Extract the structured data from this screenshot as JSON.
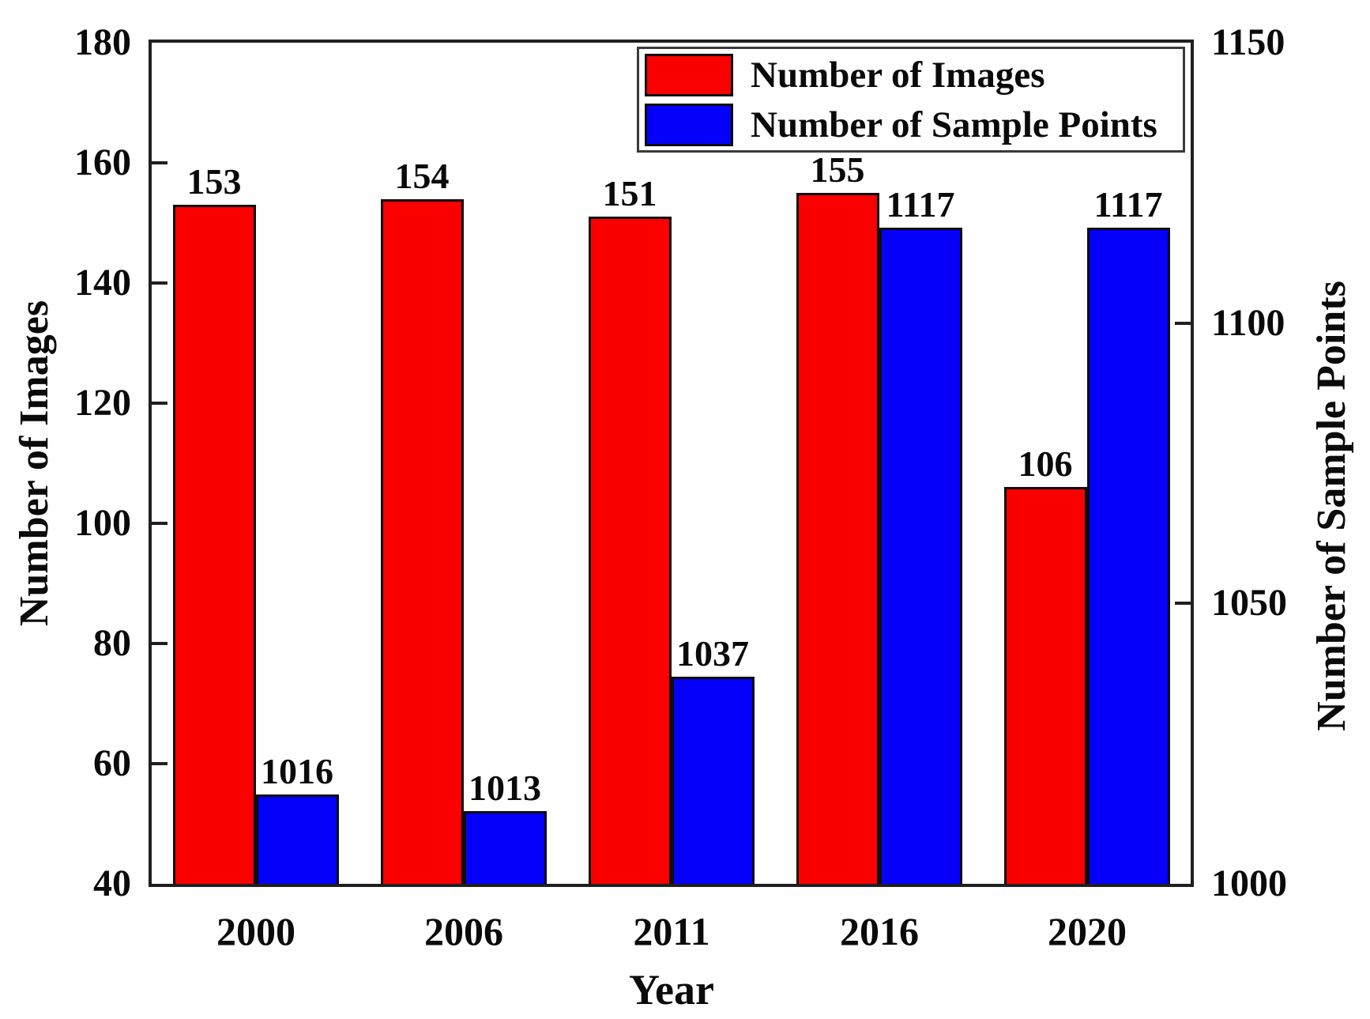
{
  "chart_data": {
    "type": "bar",
    "title": "",
    "xlabel": "Year",
    "ylabel_left": "Number of Images",
    "ylabel_right": "Number of Sample Points",
    "categories": [
      "2000",
      "2006",
      "2011",
      "2016",
      "2020"
    ],
    "series": [
      {
        "name": "Number of Images",
        "axis": "left",
        "color": "#fb0000",
        "values": [
          153,
          154,
          151,
          155,
          106
        ]
      },
      {
        "name": "Number of Sample Points",
        "axis": "right",
        "color": "#0400f9",
        "values": [
          1016,
          1013,
          1037,
          1117,
          1117
        ]
      }
    ],
    "left_axis": {
      "min": 40,
      "max": 180,
      "ticks": [
        180,
        160,
        140,
        120,
        100,
        80,
        60,
        40
      ]
    },
    "right_axis": {
      "min": 1000,
      "max": 1150,
      "ticks": [
        1150,
        1100,
        1050,
        1000
      ]
    },
    "legend_position": "top-right",
    "grid": false,
    "bar_labels_shown": true
  },
  "colors": {
    "frame": "#1f1f1f",
    "text": "#0a0a0a",
    "background": "#ffffff"
  }
}
